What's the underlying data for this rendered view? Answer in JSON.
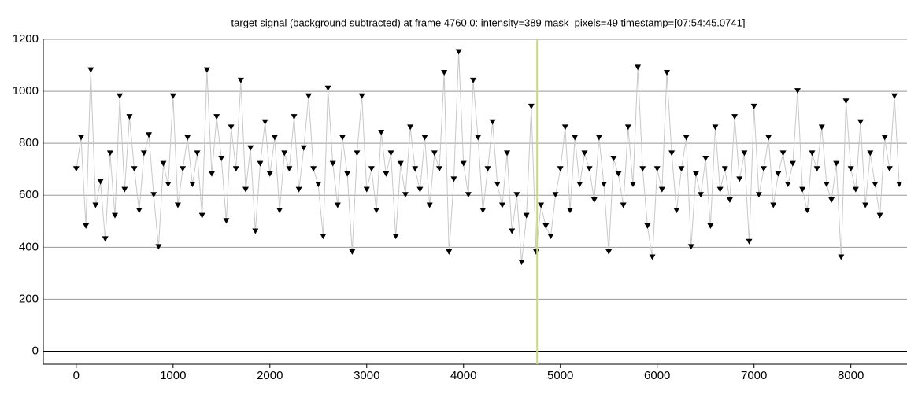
{
  "chart_data": {
    "type": "scatter",
    "title": "target signal (background subtracted) at frame 4760.0: intensity=389 mask_pixels=49 timestamp=[07:54:45.0741]",
    "x": [
      0,
      50,
      100,
      150,
      200,
      250,
      300,
      350,
      400,
      450,
      500,
      550,
      600,
      650,
      700,
      750,
      800,
      850,
      900,
      950,
      1000,
      1050,
      1100,
      1150,
      1200,
      1250,
      1300,
      1350,
      1400,
      1450,
      1500,
      1550,
      1600,
      1650,
      1700,
      1750,
      1800,
      1850,
      1900,
      1950,
      2000,
      2050,
      2100,
      2150,
      2200,
      2250,
      2300,
      2350,
      2400,
      2450,
      2500,
      2550,
      2600,
      2650,
      2700,
      2750,
      2800,
      2850,
      2900,
      2950,
      3000,
      3050,
      3100,
      3150,
      3200,
      3250,
      3300,
      3350,
      3400,
      3450,
      3500,
      3550,
      3600,
      3650,
      3700,
      3750,
      3800,
      3850,
      3900,
      3950,
      4000,
      4050,
      4100,
      4150,
      4200,
      4250,
      4300,
      4350,
      4400,
      4450,
      4500,
      4550,
      4600,
      4650,
      4700,
      4750,
      4800,
      4850,
      4900,
      4950,
      5000,
      5050,
      5100,
      5150,
      5200,
      5250,
      5300,
      5350,
      5400,
      5450,
      5500,
      5550,
      5600,
      5650,
      5700,
      5750,
      5800,
      5850,
      5900,
      5950,
      6000,
      6050,
      6100,
      6150,
      6200,
      6250,
      6300,
      6350,
      6400,
      6450,
      6500,
      6550,
      6600,
      6650,
      6700,
      6750,
      6800,
      6850,
      6900,
      6950,
      7000,
      7050,
      7100,
      7150,
      7200,
      7250,
      7300,
      7350,
      7400,
      7450,
      7500,
      7550,
      7600,
      7650,
      7700,
      7750,
      7800,
      7850,
      7900,
      7950,
      8000,
      8050,
      8100,
      8150,
      8200,
      8250,
      8300,
      8350,
      8400,
      8450,
      8500
    ],
    "values": [
      700,
      820,
      480,
      1080,
      560,
      650,
      430,
      760,
      520,
      980,
      620,
      900,
      700,
      540,
      760,
      830,
      600,
      400,
      720,
      640,
      980,
      560,
      700,
      820,
      640,
      760,
      520,
      1080,
      680,
      900,
      740,
      500,
      860,
      700,
      1040,
      620,
      780,
      460,
      720,
      880,
      680,
      820,
      540,
      760,
      700,
      900,
      620,
      780,
      980,
      700,
      640,
      440,
      1010,
      720,
      560,
      820,
      680,
      380,
      760,
      980,
      620,
      700,
      540,
      840,
      680,
      760,
      440,
      720,
      600,
      860,
      700,
      620,
      820,
      560,
      760,
      700,
      1070,
      380,
      660,
      1150,
      720,
      600,
      1040,
      820,
      540,
      700,
      880,
      640,
      560,
      760,
      460,
      600,
      340,
      520,
      940,
      380,
      560,
      480,
      440,
      600,
      700,
      860,
      540,
      820,
      640,
      760,
      700,
      580,
      820,
      640,
      380,
      740,
      680,
      560,
      860,
      640,
      1090,
      700,
      480,
      360,
      700,
      620,
      1070,
      760,
      540,
      700,
      820,
      400,
      680,
      600,
      740,
      480,
      860,
      620,
      700,
      580,
      900,
      660,
      760,
      420,
      940,
      600,
      700,
      820,
      560,
      680,
      760,
      640,
      720,
      1000,
      620,
      540,
      760,
      700,
      860,
      640,
      580,
      720,
      360,
      960,
      700,
      620,
      880,
      560,
      760,
      640,
      520,
      820,
      700,
      980,
      640
    ],
    "color": "#000000",
    "line_color": "#c8c8c8",
    "marker_x": 4760,
    "marker_color": "#c8d87a",
    "xlim": [
      -340,
      8580
    ],
    "ylim": [
      -50,
      1200
    ],
    "xticks": [
      0,
      1000,
      2000,
      3000,
      4000,
      5000,
      6000,
      7000,
      8000
    ],
    "yticks": [
      0,
      200,
      400,
      600,
      800,
      1000,
      1200
    ],
    "grid": true
  }
}
